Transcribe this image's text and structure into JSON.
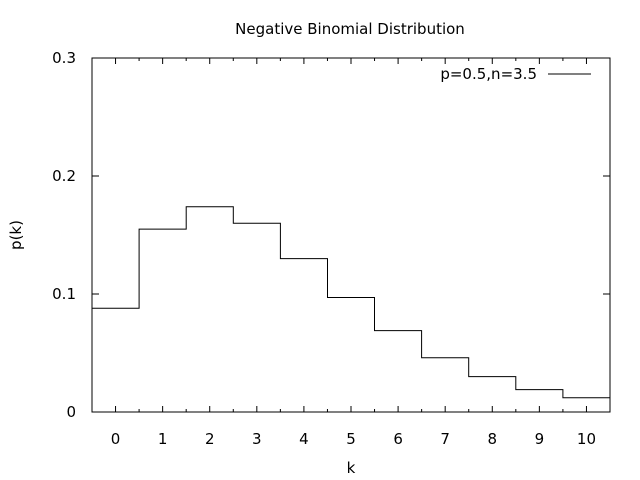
{
  "chart_data": {
    "type": "line",
    "step": "histeps",
    "title": "Negative Binomial Distribution",
    "xlabel": "k",
    "ylabel": "p(k)",
    "xlim": [
      -0.5,
      10.5
    ],
    "ylim": [
      0,
      0.3
    ],
    "x_ticks": [
      0,
      1,
      2,
      3,
      4,
      5,
      6,
      7,
      8,
      9,
      10
    ],
    "y_ticks": [
      0,
      0.1,
      0.2,
      0.3
    ],
    "x_tick_labels": [
      "0",
      "1",
      "2",
      "3",
      "4",
      "5",
      "6",
      "7",
      "8",
      "9",
      "10"
    ],
    "y_tick_labels": [
      "0",
      "0.1",
      "0.2",
      "0.3"
    ],
    "grid": false,
    "legend_position": "top-right",
    "series": [
      {
        "name": "p=0.5,n=3.5",
        "color": "#000000",
        "x": [
          0,
          1,
          2,
          3,
          4,
          5,
          6,
          7,
          8,
          9,
          10
        ],
        "values": [
          0.088,
          0.155,
          0.174,
          0.16,
          0.13,
          0.097,
          0.069,
          0.046,
          0.03,
          0.019,
          0.012
        ]
      }
    ]
  }
}
